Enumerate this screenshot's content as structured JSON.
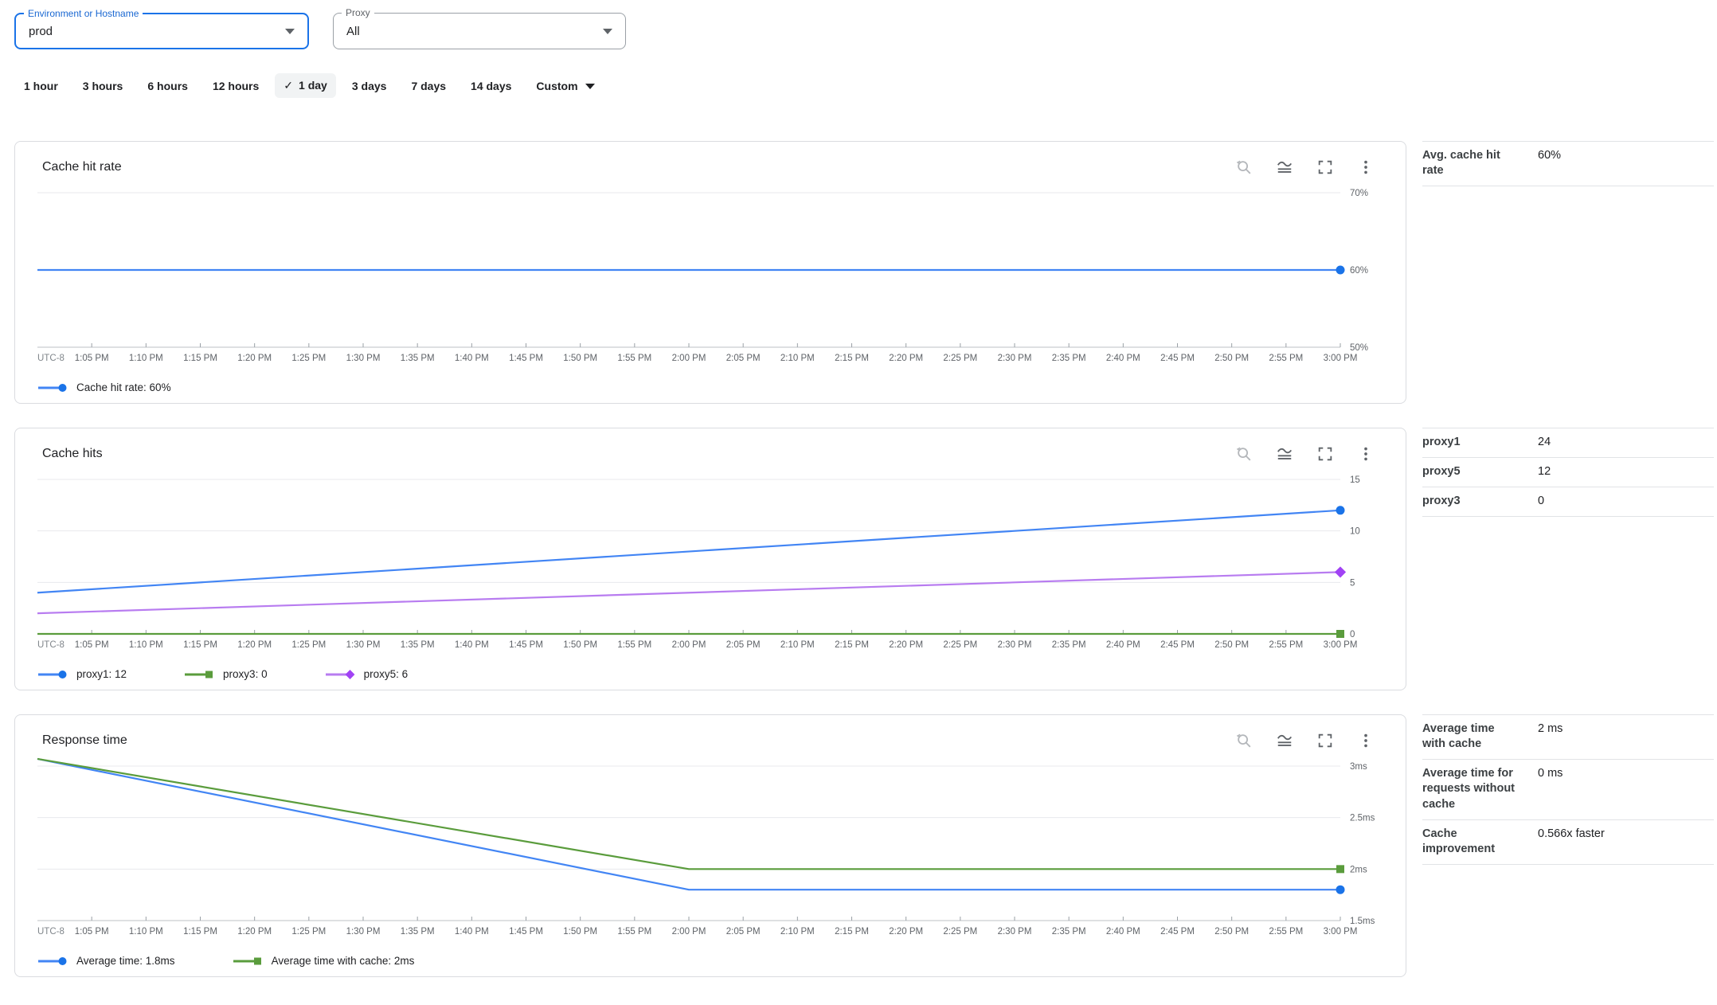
{
  "filters": {
    "environment": {
      "label": "Environment or Hostname",
      "value": "prod"
    },
    "proxy": {
      "label": "Proxy",
      "value": "All"
    }
  },
  "time_ranges": {
    "options": [
      "1 hour",
      "3 hours",
      "6 hours",
      "12 hours",
      "1 day",
      "3 days",
      "7 days",
      "14 days"
    ],
    "selected": "1 day",
    "checkmark": "✓",
    "custom_label": "Custom"
  },
  "x_prefix": "UTC-8",
  "time_labels": [
    "1:05 PM",
    "1:10 PM",
    "1:15 PM",
    "1:20 PM",
    "1:25 PM",
    "1:30 PM",
    "1:35 PM",
    "1:40 PM",
    "1:45 PM",
    "1:50 PM",
    "1:55 PM",
    "2:00 PM",
    "2:05 PM",
    "2:10 PM",
    "2:15 PM",
    "2:20 PM",
    "2:25 PM",
    "2:30 PM",
    "2:35 PM",
    "2:40 PM",
    "2:45 PM",
    "2:50 PM",
    "2:55 PM",
    "3:00 PM"
  ],
  "toolbar": {
    "icons": [
      "zoom-reset",
      "chart-style",
      "fullscreen",
      "more-options"
    ]
  },
  "chart_data": [
    {
      "type": "line",
      "title": "Cache hit rate",
      "x_axis": {
        "prefix": "UTC-8",
        "start": "1:00 PM",
        "end": "3:00 PM",
        "timezone": "UTC-8"
      },
      "y_axis": {
        "ylim": [
          50,
          70
        ],
        "ticks": [
          {
            "label": "70%",
            "value": 70
          },
          {
            "label": "60%",
            "value": 60
          },
          {
            "label": "50%",
            "value": 50
          }
        ]
      },
      "grid": true,
      "legend_position": "bottom",
      "series": [
        {
          "name": "Cache hit rate",
          "legend": "Cache hit rate: 60%",
          "color": "#4285f4",
          "marker": "circle",
          "marker_color": "#1a73e8",
          "points": [
            [
              0,
              60
            ],
            [
              1,
              60
            ]
          ]
        }
      ]
    },
    {
      "type": "line",
      "title": "Cache hits",
      "x_axis": {
        "prefix": "UTC-8",
        "start": "1:00 PM",
        "end": "3:00 PM",
        "timezone": "UTC-8"
      },
      "y_axis": {
        "ylim": [
          0,
          15
        ],
        "ticks": [
          {
            "label": "15",
            "value": 15
          },
          {
            "label": "10",
            "value": 10
          },
          {
            "label": "5",
            "value": 5
          },
          {
            "label": "0",
            "value": 0
          }
        ]
      },
      "grid": true,
      "legend_position": "bottom",
      "series": [
        {
          "name": "proxy1",
          "legend": "proxy1: 12",
          "color": "#4285f4",
          "marker": "circle",
          "marker_color": "#1a73e8",
          "points": [
            [
              0,
              4
            ],
            [
              1,
              12
            ]
          ]
        },
        {
          "name": "proxy3",
          "legend": "proxy3: 0",
          "color": "#5a9c3c",
          "marker": "square",
          "marker_color": "#5a9c3c",
          "points": [
            [
              0,
              0
            ],
            [
              1,
              0
            ]
          ]
        },
        {
          "name": "proxy5",
          "legend": "proxy5: 6",
          "color": "#b87cf0",
          "marker": "diamond",
          "marker_color": "#a142f4",
          "points": [
            [
              0,
              2
            ],
            [
              1,
              6
            ]
          ]
        }
      ]
    },
    {
      "type": "line",
      "title": "Response time",
      "x_axis": {
        "prefix": "UTC-8",
        "start": "1:00 PM",
        "end": "3:00 PM",
        "timezone": "UTC-8"
      },
      "y_axis": {
        "ylim": [
          1.5,
          3
        ],
        "ticks": [
          {
            "label": "3ms",
            "value": 3
          },
          {
            "label": "2.5ms",
            "value": 2.5
          },
          {
            "label": "2ms",
            "value": 2
          },
          {
            "label": "1.5ms",
            "value": 1.5
          }
        ]
      },
      "grid": true,
      "legend_position": "bottom",
      "series": [
        {
          "name": "Average time",
          "legend": "Average time: 1.8ms",
          "color": "#4285f4",
          "marker": "circle",
          "marker_color": "#1a73e8",
          "points": [
            [
              0,
              3.07
            ],
            [
              0.5,
              1.8
            ],
            [
              1,
              1.8
            ]
          ]
        },
        {
          "name": "Average time with cache",
          "legend": "Average time with cache: 2ms",
          "color": "#5a9c3c",
          "marker": "square",
          "marker_color": "#5a9c3c",
          "points": [
            [
              0,
              3.07
            ],
            [
              0.5,
              2
            ],
            [
              1,
              2
            ]
          ]
        }
      ]
    }
  ],
  "stats": [
    {
      "rows": [
        {
          "label": "Avg. cache hit rate",
          "value": "60%"
        }
      ]
    },
    {
      "rows": [
        {
          "label": "proxy1",
          "value": "24"
        },
        {
          "label": "proxy5",
          "value": "12"
        },
        {
          "label": "proxy3",
          "value": "0"
        }
      ]
    },
    {
      "rows": [
        {
          "label": "Average time with cache",
          "value": "2 ms"
        },
        {
          "label": "Average time for requests without cache",
          "value": "0 ms"
        },
        {
          "label": "Cache improvement",
          "value": "0.566x faster"
        }
      ]
    }
  ]
}
